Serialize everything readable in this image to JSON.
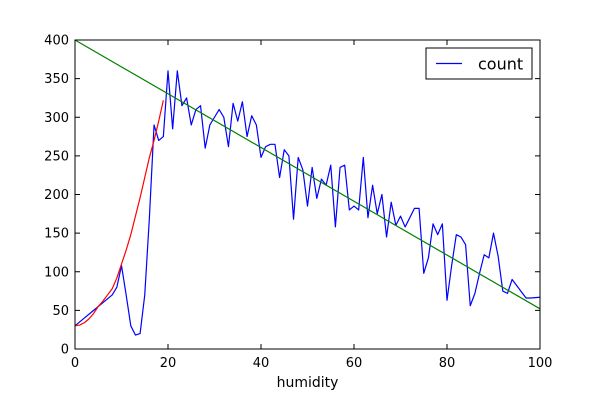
{
  "chart_data": {
    "type": "line",
    "title": "",
    "xlabel": "humidity",
    "ylabel": "",
    "xlim": [
      0,
      100
    ],
    "ylim": [
      0,
      400
    ],
    "x_ticks": [
      0,
      20,
      40,
      60,
      80,
      100
    ],
    "y_ticks": [
      0,
      50,
      100,
      150,
      200,
      250,
      300,
      350,
      400
    ],
    "grid": false,
    "legend": {
      "position": "top-right",
      "entries": [
        "count"
      ]
    },
    "series": [
      {
        "name": "count",
        "color": "#0000ff",
        "points": [
          [
            0,
            30
          ],
          [
            2,
            40
          ],
          [
            4,
            50
          ],
          [
            6,
            60
          ],
          [
            8,
            70
          ],
          [
            9,
            80
          ],
          [
            10,
            108
          ],
          [
            11,
            70
          ],
          [
            12,
            30
          ],
          [
            13,
            18
          ],
          [
            14,
            20
          ],
          [
            15,
            70
          ],
          [
            16,
            170
          ],
          [
            17,
            290
          ],
          [
            18,
            270
          ],
          [
            19,
            275
          ],
          [
            20,
            360
          ],
          [
            21,
            285
          ],
          [
            22,
            360
          ],
          [
            23,
            315
          ],
          [
            24,
            325
          ],
          [
            25,
            290
          ],
          [
            26,
            310
          ],
          [
            27,
            315
          ],
          [
            28,
            260
          ],
          [
            29,
            290
          ],
          [
            30,
            300
          ],
          [
            31,
            310
          ],
          [
            32,
            300
          ],
          [
            33,
            262
          ],
          [
            34,
            318
          ],
          [
            35,
            295
          ],
          [
            36,
            320
          ],
          [
            37,
            275
          ],
          [
            38,
            302
          ],
          [
            39,
            290
          ],
          [
            40,
            248
          ],
          [
            41,
            262
          ],
          [
            42,
            265
          ],
          [
            43,
            265
          ],
          [
            44,
            222
          ],
          [
            45,
            258
          ],
          [
            46,
            250
          ],
          [
            47,
            168
          ],
          [
            48,
            248
          ],
          [
            49,
            232
          ],
          [
            50,
            185
          ],
          [
            51,
            235
          ],
          [
            52,
            195
          ],
          [
            53,
            220
          ],
          [
            54,
            212
          ],
          [
            55,
            238
          ],
          [
            56,
            158
          ],
          [
            57,
            235
          ],
          [
            58,
            238
          ],
          [
            59,
            180
          ],
          [
            60,
            185
          ],
          [
            61,
            180
          ],
          [
            62,
            248
          ],
          [
            63,
            170
          ],
          [
            64,
            212
          ],
          [
            65,
            175
          ],
          [
            66,
            200
          ],
          [
            67,
            145
          ],
          [
            68,
            190
          ],
          [
            69,
            160
          ],
          [
            70,
            172
          ],
          [
            71,
            158
          ],
          [
            72,
            170
          ],
          [
            73,
            182
          ],
          [
            74,
            182
          ],
          [
            75,
            98
          ],
          [
            76,
            118
          ],
          [
            77,
            162
          ],
          [
            78,
            148
          ],
          [
            79,
            162
          ],
          [
            80,
            63
          ],
          [
            81,
            108
          ],
          [
            82,
            148
          ],
          [
            83,
            145
          ],
          [
            84,
            135
          ],
          [
            85,
            56
          ],
          [
            86,
            72
          ],
          [
            87,
            98
          ],
          [
            88,
            122
          ],
          [
            89,
            118
          ],
          [
            90,
            150
          ],
          [
            91,
            120
          ],
          [
            92,
            75
          ],
          [
            93,
            72
          ],
          [
            94,
            90
          ],
          [
            95,
            82
          ],
          [
            96,
            74
          ],
          [
            97,
            66
          ],
          [
            98,
            66
          ],
          [
            100,
            67
          ]
        ]
      },
      {
        "name": "",
        "color": "#008000",
        "points": [
          [
            0,
            400
          ],
          [
            100,
            52
          ]
        ]
      },
      {
        "name": "",
        "color": "#ff0000",
        "points": [
          [
            0,
            30
          ],
          [
            1,
            31
          ],
          [
            2,
            34
          ],
          [
            3,
            39
          ],
          [
            4,
            46
          ],
          [
            5,
            55
          ],
          [
            6,
            62
          ],
          [
            7,
            70
          ],
          [
            8,
            78
          ],
          [
            9,
            92
          ],
          [
            10,
            110
          ],
          [
            11,
            128
          ],
          [
            12,
            148
          ],
          [
            13,
            172
          ],
          [
            14,
            196
          ],
          [
            15,
            222
          ],
          [
            16,
            248
          ],
          [
            17,
            270
          ],
          [
            18,
            295
          ],
          [
            19,
            322
          ]
        ]
      }
    ]
  }
}
